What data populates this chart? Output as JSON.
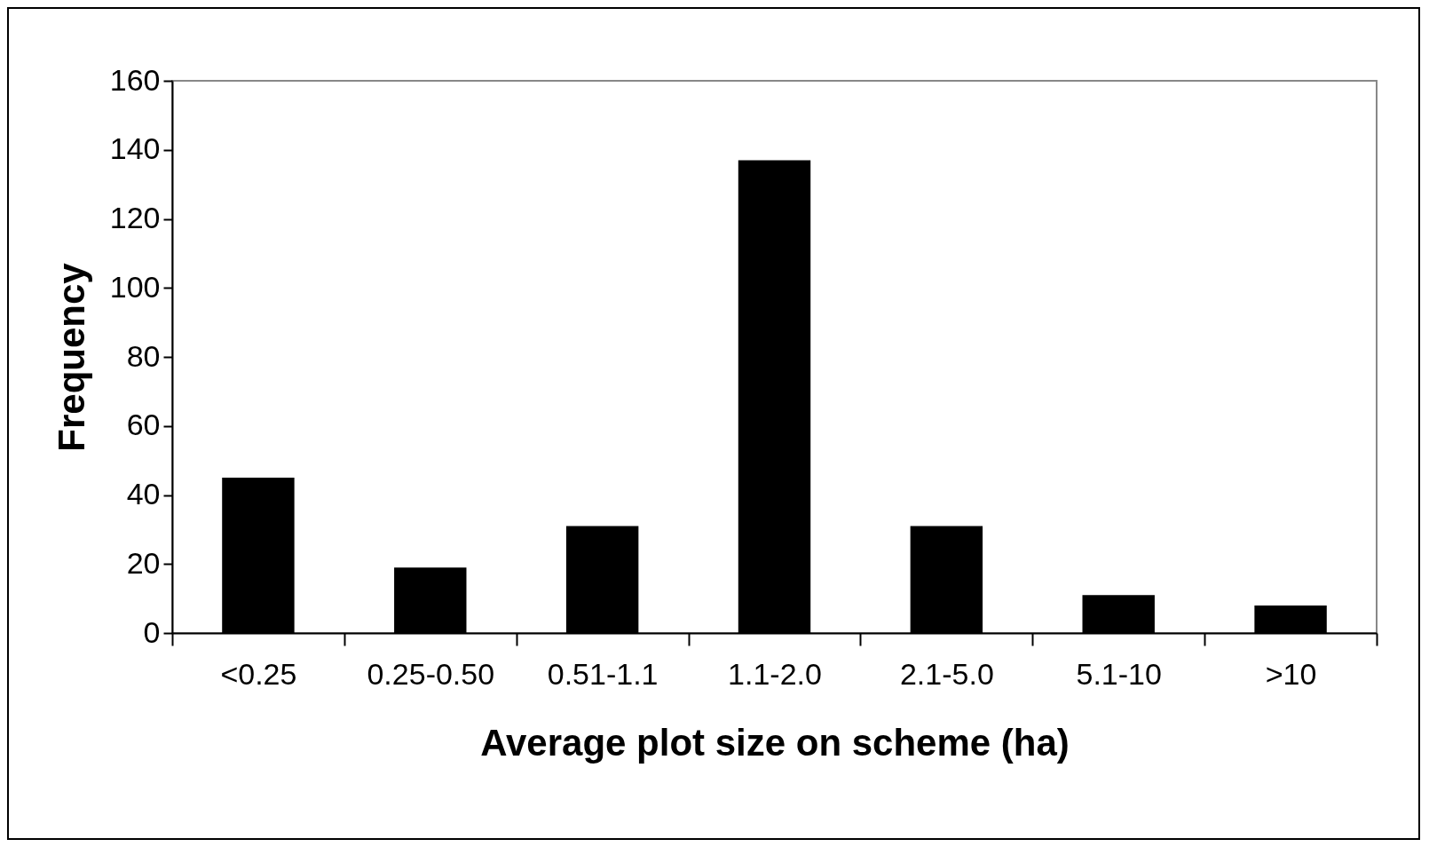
{
  "chart_data": {
    "type": "bar",
    "xlabel": "Average plot size on scheme (ha)",
    "ylabel": "Frequency",
    "categories": [
      "<0.25",
      "0.25-0.50",
      "0.51-1.1",
      "1.1-2.0",
      "2.1-5.0",
      "5.1-10",
      ">10"
    ],
    "values": [
      45,
      19,
      31,
      137,
      31,
      11,
      8
    ],
    "color": "#000000",
    "ylim": [
      0,
      160
    ],
    "yticks": [
      0,
      20,
      40,
      60,
      80,
      100,
      120,
      140,
      160
    ],
    "grid": false
  }
}
